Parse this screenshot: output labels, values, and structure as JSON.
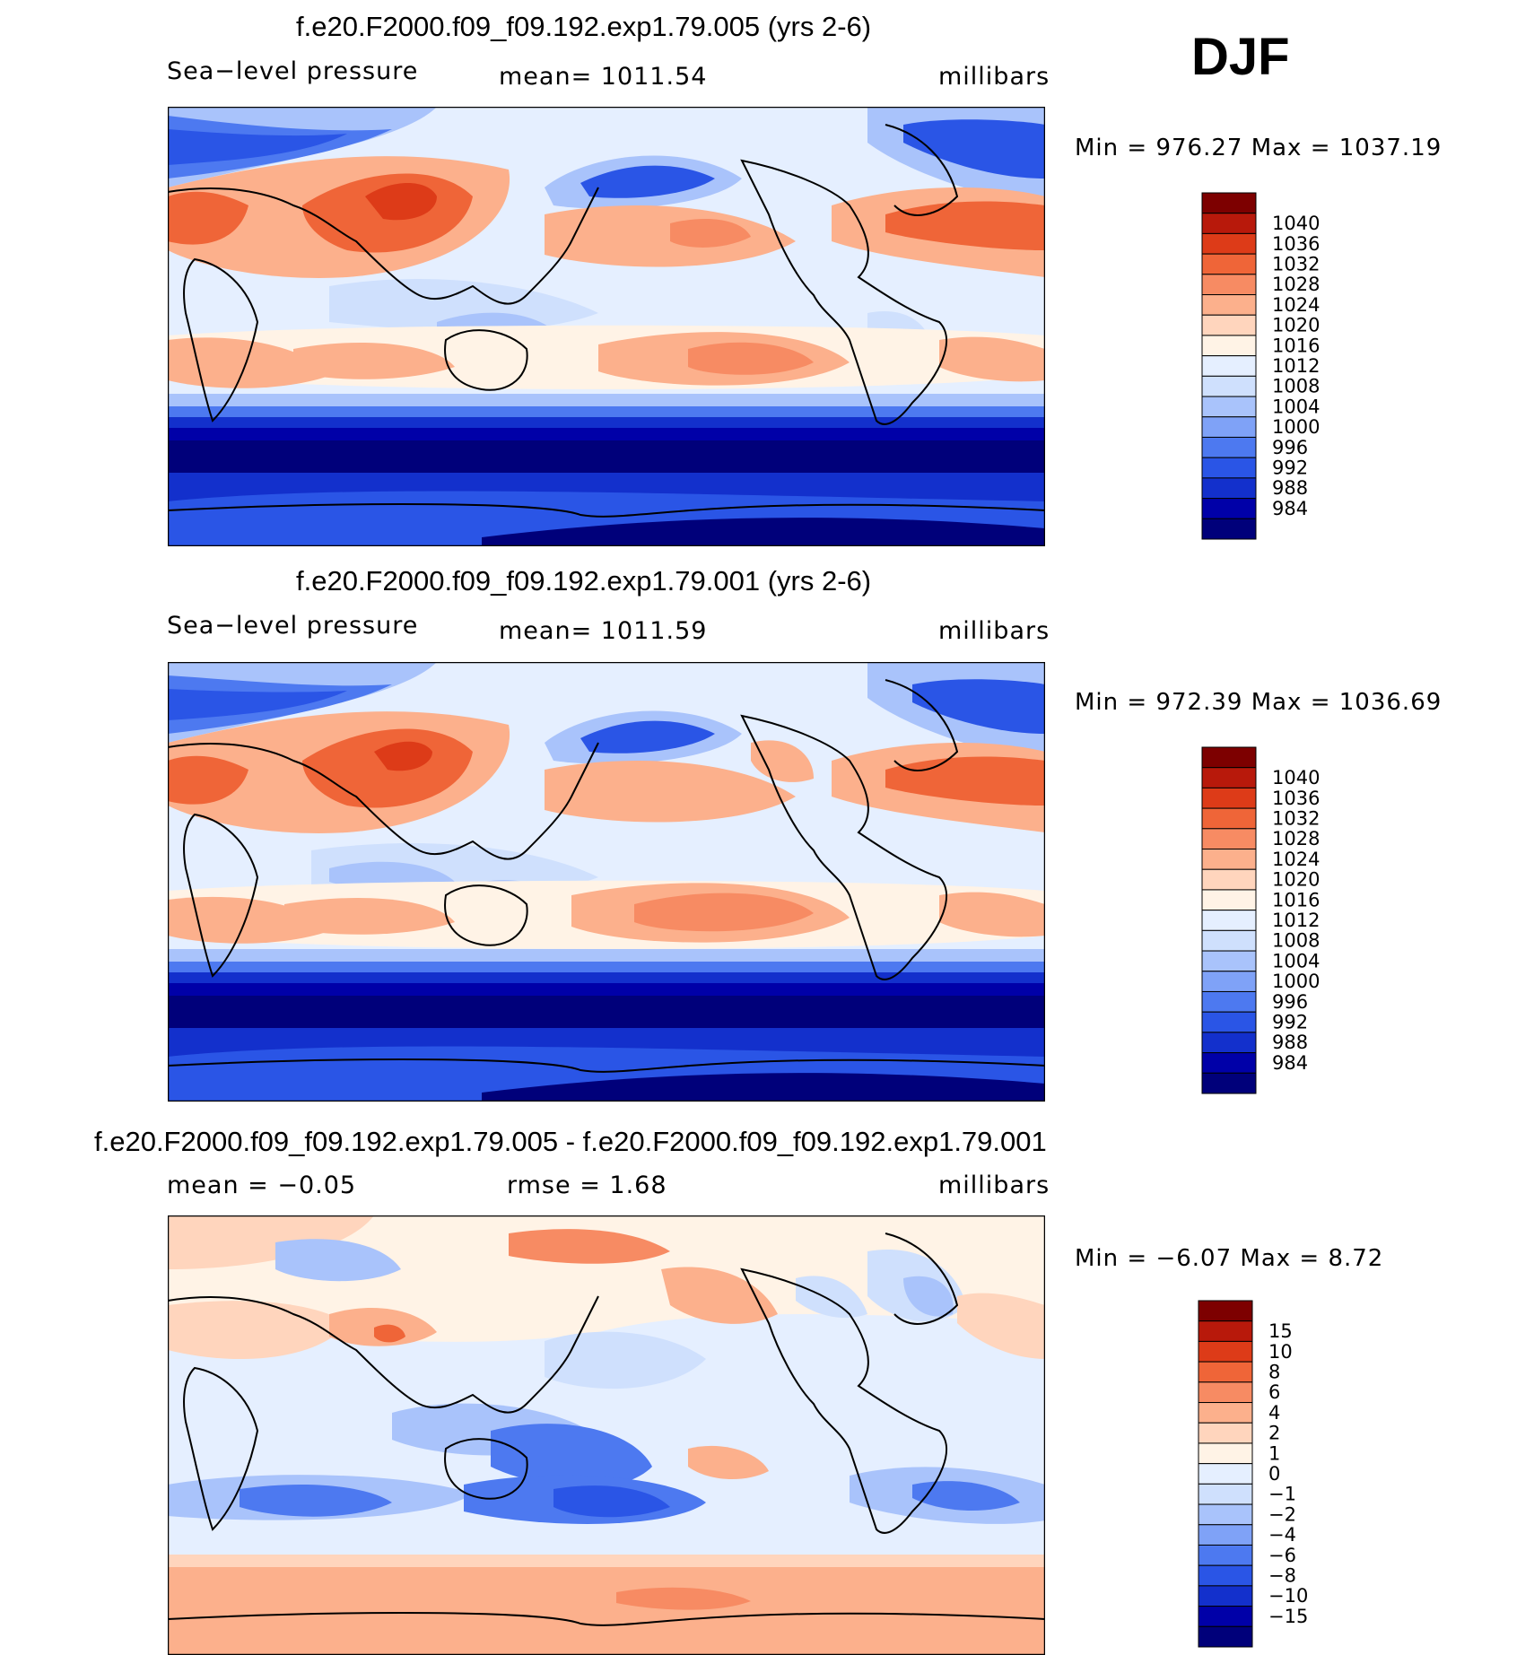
{
  "season": "DJF",
  "colors": {
    "main_scale": [
      "#00007a",
      "#0000a8",
      "#1330cc",
      "#2a55e6",
      "#4d79f0",
      "#7fa2f7",
      "#a9c3fb",
      "#cfe0fd",
      "#e5efff",
      "#fff3e6",
      "#ffd5bd",
      "#fcb08c",
      "#f78b63",
      "#ef6538",
      "#dd3b18",
      "#b8190b",
      "#7d0000"
    ],
    "diff_scale": [
      "#00007a",
      "#0000a8",
      "#1330cc",
      "#2a55e6",
      "#4d79f0",
      "#7fa2f7",
      "#a9c3fb",
      "#cfe0fd",
      "#e5efff",
      "#fff3e6",
      "#ffd5bd",
      "#fcb08c",
      "#f78b63",
      "#ef6538",
      "#dd3b18",
      "#b8190b",
      "#7d0000"
    ]
  },
  "panels": [
    {
      "id": "test",
      "title": "f.e20.F2000.f09_f09.192.exp1.79.005 (yrs 2-6)",
      "left_label": "Sea−level pressure",
      "center_label": "mean=  1011.54",
      "right_label": "millibars",
      "minmax": "Min  =  976.27  Max  =  1037.19",
      "colorbar_labels": [
        "1040",
        "1036",
        "1032",
        "1028",
        "1024",
        "1020",
        "1016",
        "1012",
        "1008",
        "1004",
        "1000",
        "996",
        "992",
        "988",
        "984"
      ]
    },
    {
      "id": "control",
      "title": "f.e20.F2000.f09_f09.192.exp1.79.001 (yrs 2-6)",
      "left_label": "Sea−level pressure",
      "center_label": "mean=  1011.59",
      "right_label": "millibars",
      "minmax": "Min  =  972.39  Max  =  1036.69",
      "colorbar_labels": [
        "1040",
        "1036",
        "1032",
        "1028",
        "1024",
        "1020",
        "1016",
        "1012",
        "1008",
        "1004",
        "1000",
        "996",
        "992",
        "988",
        "984"
      ]
    },
    {
      "id": "difference",
      "title": "f.e20.F2000.f09_f09.192.exp1.79.005 - f.e20.F2000.f09_f09.192.exp1.79.001",
      "left_label": "mean  =    −0.05",
      "center_label": "rmse  =      1.68",
      "right_label": "millibars",
      "minmax": "Min  =     −6.07  Max  =      8.72",
      "colorbar_labels": [
        "15",
        "10",
        "8",
        "6",
        "4",
        "2",
        "1",
        "0",
        "−1",
        "−2",
        "−4",
        "−6",
        "−8",
        "−10",
        "−15"
      ]
    }
  ]
}
